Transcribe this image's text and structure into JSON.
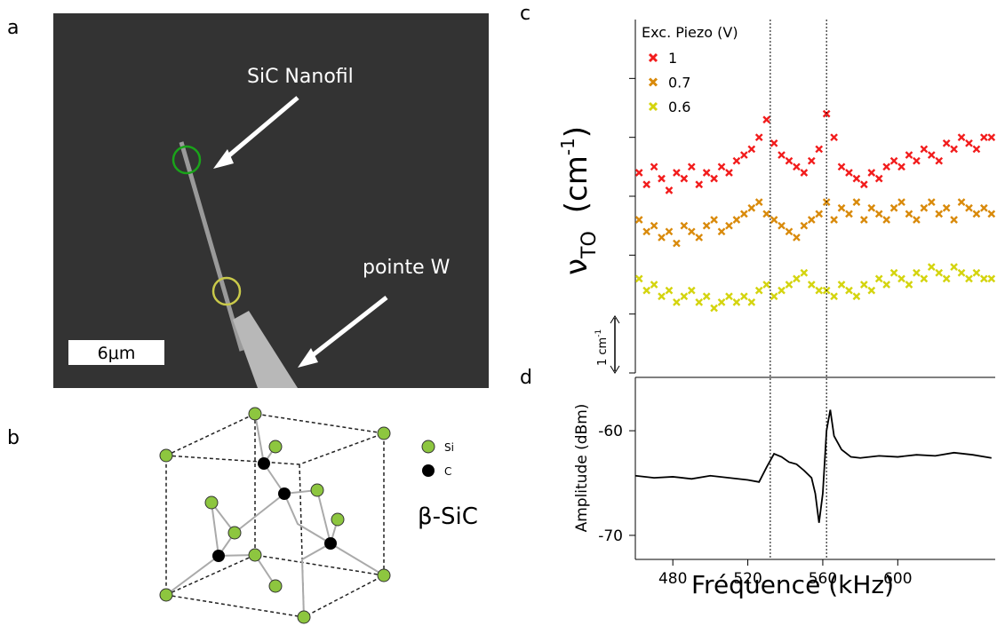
{
  "panel_labels": [
    "a",
    "b",
    "c",
    "d"
  ],
  "sem_image": {
    "labels": [
      "SiC Nanofil",
      "pointe W"
    ],
    "scale_bar": "6μm"
  },
  "lattice": {
    "legend": [
      "Si",
      "C"
    ],
    "title": "β-SiC"
  },
  "chart_data": [
    {
      "type": "scatter",
      "y_label": {
        "symbol": "ν",
        "sub": "TO",
        "unit": "(cm",
        "sup": "-1",
        "close": ")"
      },
      "scale_bar": {
        "text": "1 cm",
        "sup": "-1"
      },
      "legend_title": "Exc. Piezo (V)",
      "legend": "top-left",
      "xlim": [
        460,
        652
      ],
      "ylim": [
        0,
        6
      ],
      "yticks": [
        0,
        1,
        2,
        3,
        4,
        5
      ],
      "vlines": [
        532,
        562
      ],
      "x": [
        462,
        466,
        470,
        474,
        478,
        482,
        486,
        490,
        494,
        498,
        502,
        506,
        510,
        514,
        518,
        522,
        526,
        530,
        534,
        538,
        542,
        546,
        550,
        554,
        558,
        562,
        566,
        570,
        574,
        578,
        582,
        586,
        590,
        594,
        598,
        602,
        606,
        610,
        614,
        618,
        622,
        626,
        630,
        634,
        638,
        642,
        646,
        650
      ],
      "series": [
        {
          "name": "1",
          "color": "#f21c1c",
          "values": [
            3.4,
            3.2,
            3.5,
            3.3,
            3.1,
            3.4,
            3.3,
            3.5,
            3.2,
            3.4,
            3.3,
            3.5,
            3.4,
            3.6,
            3.7,
            3.8,
            4.0,
            4.3,
            3.9,
            3.7,
            3.6,
            3.5,
            3.4,
            3.6,
            3.8,
            4.4,
            4.0,
            3.5,
            3.4,
            3.3,
            3.2,
            3.4,
            3.3,
            3.5,
            3.6,
            3.5,
            3.7,
            3.6,
            3.8,
            3.7,
            3.6,
            3.9,
            3.8,
            4.0,
            3.9,
            3.8,
            4.0,
            4.0
          ]
        },
        {
          "name": "0.7",
          "color": "#d98a0b",
          "values": [
            2.6,
            2.4,
            2.5,
            2.3,
            2.4,
            2.2,
            2.5,
            2.4,
            2.3,
            2.5,
            2.6,
            2.4,
            2.5,
            2.6,
            2.7,
            2.8,
            2.9,
            2.7,
            2.6,
            2.5,
            2.4,
            2.3,
            2.5,
            2.6,
            2.7,
            2.9,
            2.6,
            2.8,
            2.7,
            2.9,
            2.6,
            2.8,
            2.7,
            2.6,
            2.8,
            2.9,
            2.7,
            2.6,
            2.8,
            2.9,
            2.7,
            2.8,
            2.6,
            2.9,
            2.8,
            2.7,
            2.8,
            2.7
          ]
        },
        {
          "name": "0.6",
          "color": "#d4d40e",
          "values": [
            1.6,
            1.4,
            1.5,
            1.3,
            1.4,
            1.2,
            1.3,
            1.4,
            1.2,
            1.3,
            1.1,
            1.2,
            1.3,
            1.2,
            1.3,
            1.2,
            1.4,
            1.5,
            1.3,
            1.4,
            1.5,
            1.6,
            1.7,
            1.5,
            1.4,
            1.4,
            1.3,
            1.5,
            1.4,
            1.3,
            1.5,
            1.4,
            1.6,
            1.5,
            1.7,
            1.6,
            1.5,
            1.7,
            1.6,
            1.8,
            1.7,
            1.6,
            1.8,
            1.7,
            1.6,
            1.7,
            1.6,
            1.6
          ]
        }
      ]
    },
    {
      "type": "line",
      "x_label": "Fréquence (kHz)",
      "y_label": "Amplitude (dBm)",
      "xlim": [
        460,
        652
      ],
      "xticks": [
        480,
        520,
        560,
        600
      ],
      "ylim": [
        -72.3,
        -54.9
      ],
      "yticks": [
        -60,
        -70
      ],
      "x": [
        460,
        470,
        480,
        490,
        500,
        510,
        520,
        526,
        530,
        534,
        538,
        542,
        546,
        550,
        554,
        556,
        558,
        560,
        562,
        564,
        566,
        570,
        575,
        580,
        590,
        600,
        610,
        620,
        630,
        640,
        650
      ],
      "series": [
        {
          "color": "#000000",
          "values": [
            -64.3,
            -64.5,
            -64.4,
            -64.6,
            -64.3,
            -64.5,
            -64.7,
            -64.9,
            -63.5,
            -62.2,
            -62.5,
            -63.0,
            -63.2,
            -63.8,
            -64.5,
            -66.0,
            -68.8,
            -66.0,
            -60.0,
            -58.0,
            -60.5,
            -61.8,
            -62.5,
            -62.6,
            -62.4,
            -62.5,
            -62.3,
            -62.4,
            -62.1,
            -62.3,
            -62.6
          ]
        }
      ]
    }
  ]
}
